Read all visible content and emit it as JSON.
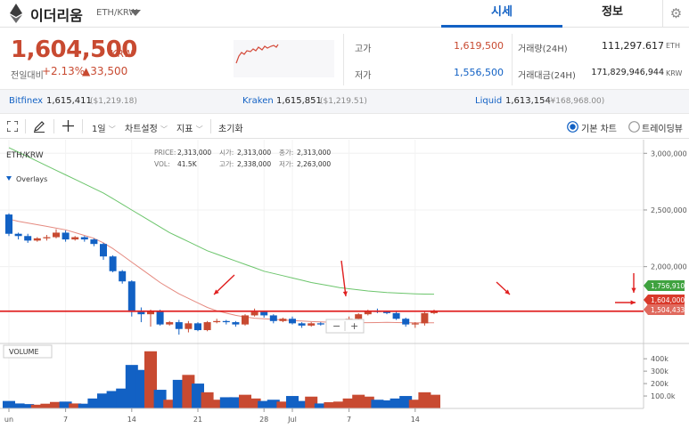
{
  "header": {
    "coin_name": "이더리움",
    "pair": "ETH/KRW",
    "tabs": [
      {
        "label": "시세"
      },
      {
        "label": "정보"
      }
    ]
  },
  "price": {
    "current": "1,604,500",
    "unit": "KRW",
    "change_label": "전일대비",
    "change_rate": "+2.13%",
    "change_amount": "▲33,500"
  },
  "stats": {
    "high_label": "고가",
    "high": "1,619,500",
    "low_label": "저가",
    "low": "1,556,500",
    "volume_label": "거래량(24H)",
    "volume": "111,297.617",
    "volume_unit": "ETH",
    "amount_label": "거래대금(24H)",
    "amount": "171,829,946,944",
    "amount_unit": "KRW"
  },
  "exchanges": [
    {
      "name": "Bitfinex",
      "price": "1,615,411",
      "usd": "($1,219.18)"
    },
    {
      "name": "Kraken",
      "price": "1,615,851",
      "usd": "($1,219.51)"
    },
    {
      "name": "Liquid",
      "price": "1,613,154",
      "usd": "(¥168,968.00)"
    }
  ],
  "toolbar": {
    "interval": "1일",
    "chart_settings": "차트설정",
    "indicators": "지표",
    "reset": "초기화",
    "basic_chart": "기본 차트",
    "tradingview": "트레이딩뷰"
  },
  "colors": {
    "up": "#c84a31",
    "down": "#1261c4",
    "accent": "#1261c4"
  },
  "chart_data": {
    "type": "candlestick",
    "symbol": "ETH/KRW",
    "overlays_label": "Overlays",
    "volume_label": "VOLUME",
    "info": {
      "price_label": "PRICE:",
      "price": "2,313,000",
      "vol_label": "VOL:",
      "vol": "41.5K",
      "open_label": "시가:",
      "open": "2,313,000",
      "high_label": "고가:",
      "high": "2,338,000",
      "close_label": "종가:",
      "close": "2,313,000",
      "low_label": "저가:",
      "low": "2,263,000"
    },
    "y_ticks": [
      {
        "label": "3,000,000",
        "value": 3000000
      },
      {
        "label": "2,500,000",
        "value": 2500000
      },
      {
        "label": "2,000,000",
        "value": 2000000
      }
    ],
    "vol_ticks": [
      {
        "label": "400k",
        "value": 400000
      },
      {
        "label": "300k",
        "value": 300000
      },
      {
        "label": "200k",
        "value": 200000
      },
      {
        "label": "100.0k",
        "value": 100000
      }
    ],
    "x_ticks": [
      {
        "label": "un",
        "index": 0
      },
      {
        "label": "7",
        "index": 6
      },
      {
        "label": "14",
        "index": 13
      },
      {
        "label": "21",
        "index": 20
      },
      {
        "label": "28",
        "index": 27
      },
      {
        "label": "Jul",
        "index": 30
      },
      {
        "label": "7",
        "index": 36
      },
      {
        "label": "14",
        "index": 43
      }
    ],
    "ylim": [
      1330000,
      3120000
    ],
    "volume_ylim": [
      0,
      480000
    ],
    "price_tags": [
      {
        "label": "1,756,910",
        "value": 1756910,
        "color": "#3fa23f"
      },
      {
        "label": "1,604,000",
        "value": 1604000,
        "color": "#d93a2b"
      },
      {
        "label": "1,504,433",
        "value": 1504433,
        "color": "#e06a5e"
      }
    ],
    "horizontal_line": 1607000,
    "ohlc": [
      [
        2460000,
        2290000,
        2470000,
        2270000,
        60000
      ],
      [
        2290000,
        2270000,
        2300000,
        2240000,
        40000
      ],
      [
        2270000,
        2230000,
        2290000,
        2210000,
        35000
      ],
      [
        2230000,
        2250000,
        2260000,
        2220000,
        30000
      ],
      [
        2250000,
        2260000,
        2280000,
        2230000,
        38000
      ],
      [
        2260000,
        2300000,
        2330000,
        2250000,
        52000
      ],
      [
        2300000,
        2240000,
        2320000,
        2220000,
        55000
      ],
      [
        2240000,
        2260000,
        2270000,
        2230000,
        40000
      ],
      [
        2260000,
        2240000,
        2270000,
        2220000,
        38000
      ],
      [
        2240000,
        2200000,
        2250000,
        2180000,
        80000
      ],
      [
        2200000,
        2090000,
        2210000,
        2060000,
        120000
      ],
      [
        2090000,
        1960000,
        2100000,
        1950000,
        140000
      ],
      [
        1960000,
        1870000,
        1970000,
        1850000,
        160000
      ],
      [
        1870000,
        1600000,
        1880000,
        1560000,
        350000
      ],
      [
        1600000,
        1580000,
        1640000,
        1510000,
        310000
      ],
      [
        1580000,
        1610000,
        1620000,
        1470000,
        460000
      ],
      [
        1610000,
        1490000,
        1620000,
        1480000,
        150000
      ],
      [
        1490000,
        1510000,
        1520000,
        1480000,
        70000
      ],
      [
        1510000,
        1450000,
        1530000,
        1400000,
        230000
      ],
      [
        1450000,
        1500000,
        1520000,
        1420000,
        270000
      ],
      [
        1500000,
        1440000,
        1510000,
        1430000,
        200000
      ],
      [
        1440000,
        1510000,
        1520000,
        1430000,
        130000
      ],
      [
        1510000,
        1520000,
        1540000,
        1500000,
        70000
      ],
      [
        1520000,
        1510000,
        1530000,
        1490000,
        90000
      ],
      [
        1510000,
        1490000,
        1520000,
        1470000,
        90000
      ],
      [
        1490000,
        1570000,
        1580000,
        1480000,
        110000
      ],
      [
        1570000,
        1600000,
        1630000,
        1560000,
        80000
      ],
      [
        1600000,
        1570000,
        1610000,
        1550000,
        60000
      ],
      [
        1570000,
        1520000,
        1580000,
        1500000,
        70000
      ],
      [
        1520000,
        1540000,
        1550000,
        1510000,
        55000
      ],
      [
        1540000,
        1500000,
        1560000,
        1490000,
        100000
      ],
      [
        1500000,
        1480000,
        1510000,
        1460000,
        60000
      ],
      [
        1480000,
        1500000,
        1510000,
        1470000,
        95000
      ],
      [
        1500000,
        1490000,
        1510000,
        1480000,
        40000
      ],
      [
        1490000,
        1510000,
        1520000,
        1480000,
        50000
      ],
      [
        1510000,
        1520000,
        1530000,
        1500000,
        55000
      ],
      [
        1520000,
        1540000,
        1560000,
        1510000,
        80000
      ],
      [
        1540000,
        1580000,
        1590000,
        1530000,
        110000
      ],
      [
        1580000,
        1610000,
        1620000,
        1570000,
        95000
      ],
      [
        1610000,
        1600000,
        1630000,
        1590000,
        70000
      ],
      [
        1600000,
        1590000,
        1610000,
        1580000,
        65000
      ],
      [
        1590000,
        1540000,
        1600000,
        1530000,
        80000
      ],
      [
        1540000,
        1490000,
        1550000,
        1470000,
        100000
      ],
      [
        1490000,
        1500000,
        1510000,
        1460000,
        70000
      ],
      [
        1500000,
        1590000,
        1600000,
        1480000,
        130000
      ],
      [
        1590000,
        1610000,
        1620000,
        1580000,
        110000
      ]
    ],
    "ma_slow": [
      3050000,
      3010000,
      2970000,
      2930000,
      2890000,
      2850000,
      2810000,
      2770000,
      2730000,
      2690000,
      2650000,
      2600000,
      2550000,
      2500000,
      2450000,
      2400000,
      2350000,
      2300000,
      2260000,
      2220000,
      2180000,
      2140000,
      2110000,
      2080000,
      2050000,
      2020000,
      1990000,
      1960000,
      1940000,
      1920000,
      1900000,
      1880000,
      1860000,
      1845000,
      1830000,
      1815000,
      1805000,
      1795000,
      1785000,
      1778000,
      1772000,
      1768000,
      1764000,
      1760000,
      1758000,
      1756910
    ],
    "ma_fast": [
      2420000,
      2400000,
      2385000,
      2370000,
      2355000,
      2340000,
      2325000,
      2300000,
      2275000,
      2250000,
      2210000,
      2160000,
      2100000,
      2040000,
      1980000,
      1920000,
      1860000,
      1810000,
      1760000,
      1720000,
      1680000,
      1640000,
      1610000,
      1590000,
      1570000,
      1555000,
      1545000,
      1540000,
      1535000,
      1530000,
      1525000,
      1520000,
      1515000,
      1512000,
      1510000,
      1508000,
      1507000,
      1506000,
      1506000,
      1507000,
      1508000,
      1507000,
      1506000,
      1505000,
      1504500,
      1504433
    ]
  }
}
